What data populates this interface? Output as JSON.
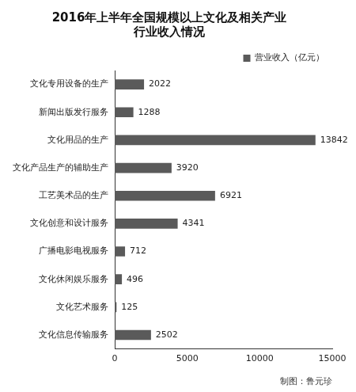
{
  "chart_data": {
    "type": "bar",
    "orientation": "horizontal",
    "title": [
      "2016年上半年全国规模以上文化及相关产业",
      "行业收入情况"
    ],
    "categories": [
      "文化专用设备的生产",
      "新闻出版发行服务",
      "文化用品的生产",
      "文化产品生产的辅助生产",
      "工艺美术品的生产",
      "文化创意和设计服务",
      "广播电影电视服务",
      "文化休闲娱乐服务",
      "文化艺术服务",
      "文化信息传输服务"
    ],
    "series": [
      {
        "name": "营业收入（亿元）",
        "color": "#5a5a5a",
        "values": [
          2022,
          1288,
          13842,
          3920,
          6921,
          4341,
          712,
          496,
          125,
          2502
        ]
      }
    ],
    "xlim": [
      0,
      15000
    ],
    "xticks": [
      0,
      5000,
      10000,
      15000
    ],
    "grid": false,
    "legend": "upper right",
    "data_labels": true,
    "annotations": [
      "制图：鲁元珍"
    ]
  }
}
